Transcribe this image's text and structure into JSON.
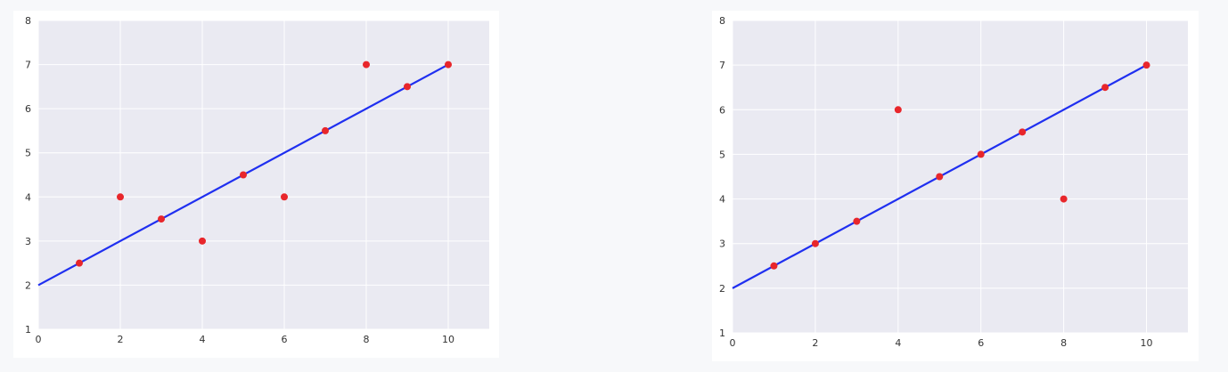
{
  "chart_data": [
    {
      "type": "scatter",
      "title": "",
      "xlabel": "",
      "ylabel": "",
      "xlim": [
        0,
        11
      ],
      "ylim": [
        1,
        8
      ],
      "xticks": [
        0,
        2,
        4,
        6,
        8,
        10
      ],
      "yticks": [
        1,
        2,
        3,
        4,
        5,
        6,
        7,
        8
      ],
      "grid": true,
      "background": "#eaeaf2",
      "grid_color": "#ffffff",
      "series": [
        {
          "type": "scatter",
          "color": "#e8262b",
          "points": [
            [
              1,
              2.5
            ],
            [
              2,
              4
            ],
            [
              3,
              3.5
            ],
            [
              4,
              3
            ],
            [
              5,
              4.5
            ],
            [
              6,
              4
            ],
            [
              7,
              5.5
            ],
            [
              8,
              7
            ],
            [
              9,
              6.5
            ],
            [
              10,
              7
            ]
          ]
        },
        {
          "type": "line",
          "color": "#1f2ff0",
          "points": [
            [
              0,
              2
            ],
            [
              10,
              7
            ]
          ]
        }
      ]
    },
    {
      "type": "scatter",
      "title": "",
      "xlabel": "",
      "ylabel": "",
      "xlim": [
        0,
        11
      ],
      "ylim": [
        1,
        8
      ],
      "xticks": [
        0,
        2,
        4,
        6,
        8,
        10
      ],
      "yticks": [
        1,
        2,
        3,
        4,
        5,
        6,
        7,
        8
      ],
      "grid": true,
      "background": "#eaeaf2",
      "grid_color": "#ffffff",
      "series": [
        {
          "type": "scatter",
          "color": "#e8262b",
          "points": [
            [
              1,
              2.5
            ],
            [
              2,
              3
            ],
            [
              3,
              3.5
            ],
            [
              4,
              6
            ],
            [
              5,
              4.5
            ],
            [
              6,
              5
            ],
            [
              7,
              5.5
            ],
            [
              8,
              4
            ],
            [
              9,
              6.5
            ],
            [
              10,
              7
            ]
          ]
        },
        {
          "type": "line",
          "color": "#1f2ff0",
          "points": [
            [
              0,
              2
            ],
            [
              10,
              7
            ]
          ]
        }
      ]
    }
  ]
}
